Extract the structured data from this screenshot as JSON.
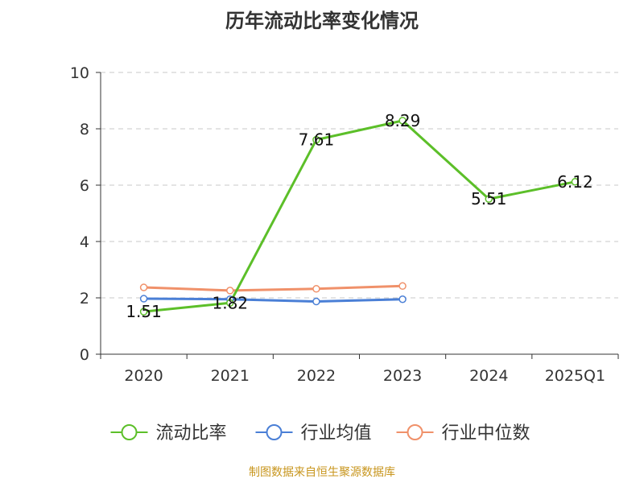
{
  "title": "历年流动比率变化情况",
  "source_text": "制图数据来自恒生聚源数据库",
  "chart_data": {
    "type": "line",
    "title": "历年流动比率变化情况",
    "categories": [
      "2020",
      "2021",
      "2022",
      "2023",
      "2024",
      "2025Q1"
    ],
    "ylim": [
      0,
      10
    ],
    "yticks": [
      0,
      2,
      4,
      6,
      8,
      10
    ],
    "grid": true,
    "legend_position": "bottom",
    "series": [
      {
        "name": "流动比率",
        "color": "#5cbf29",
        "values": [
          1.51,
          1.82,
          7.61,
          8.29,
          5.51,
          6.12
        ],
        "labels": [
          "1.51",
          "1.82",
          "7.61",
          "8.29",
          "5.51",
          "6.12"
        ]
      },
      {
        "name": "行业均值",
        "color": "#4a7fd6",
        "values": [
          1.97,
          1.95,
          1.87,
          1.95,
          null,
          null
        ]
      },
      {
        "name": "行业中位数",
        "color": "#f0916a",
        "values": [
          2.37,
          2.26,
          2.32,
          2.42,
          null,
          null
        ]
      }
    ]
  }
}
